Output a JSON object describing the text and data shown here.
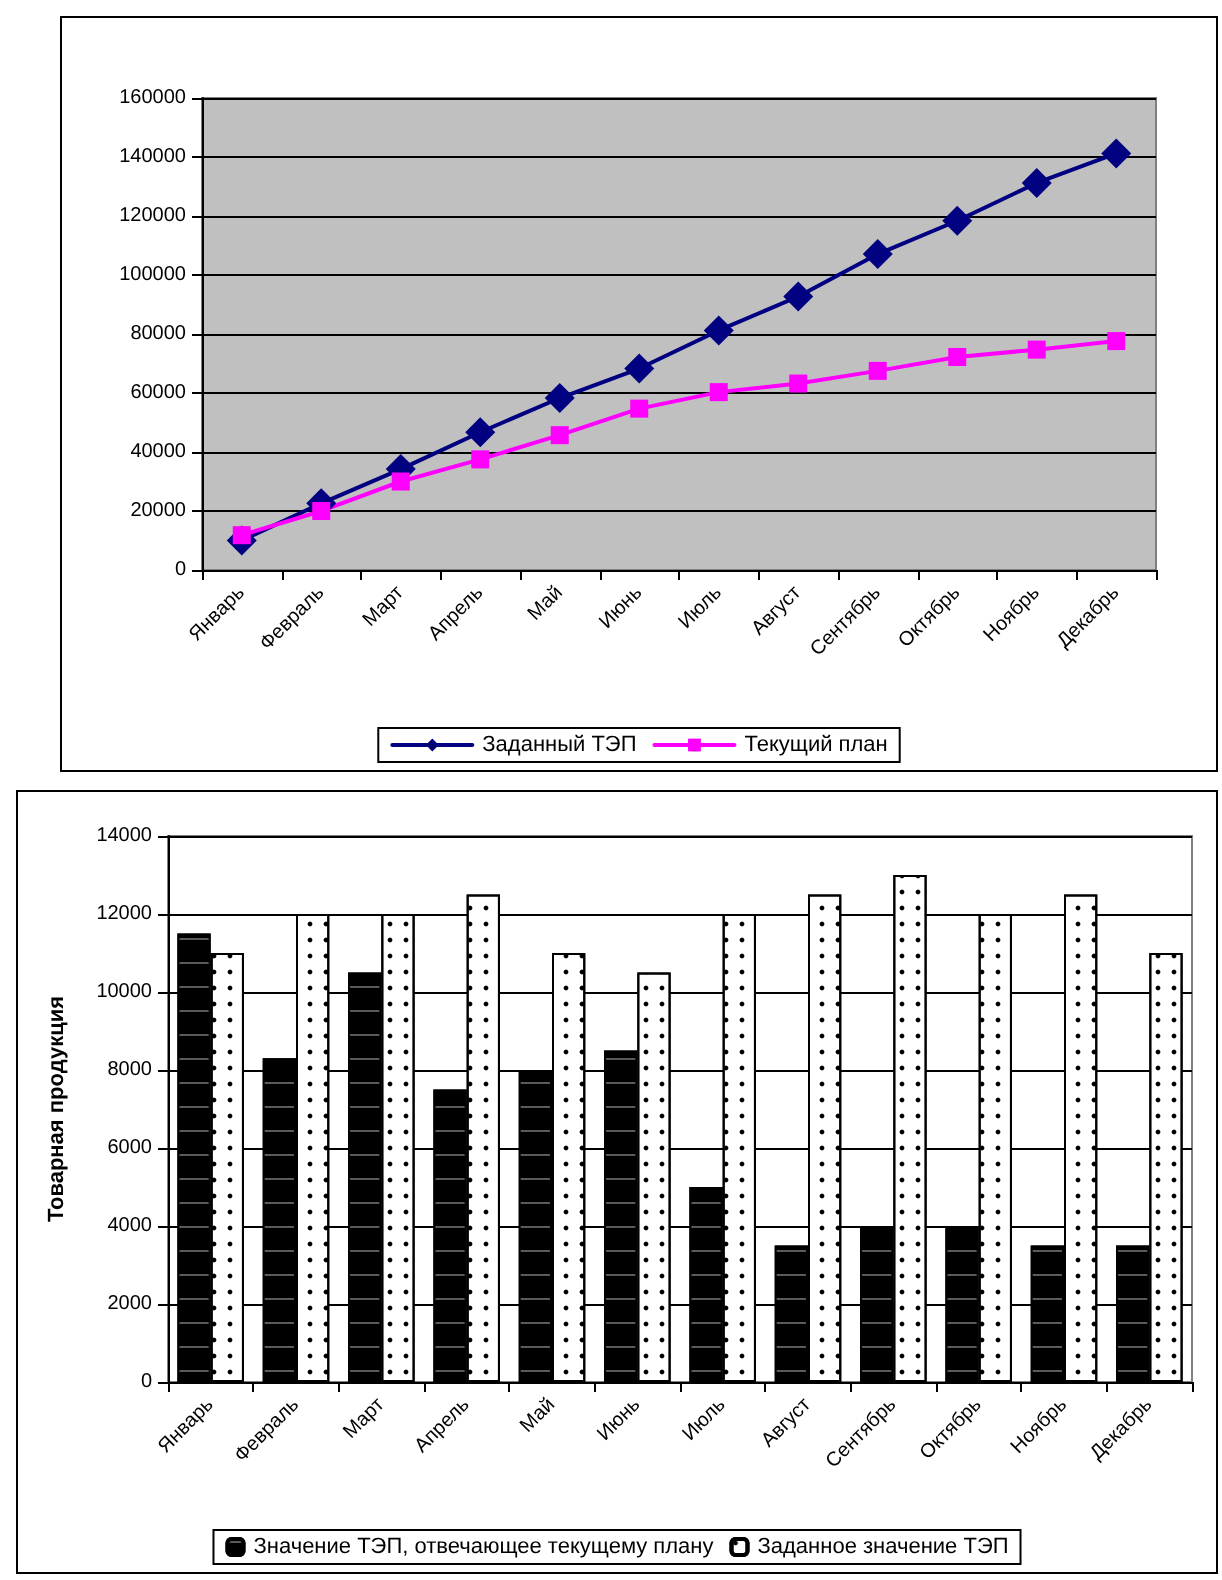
{
  "chart_data": [
    {
      "type": "line",
      "categories": [
        "Январь",
        "Февраль",
        "Март",
        "Апрель",
        "Май",
        "Июнь",
        "Июль",
        "Август",
        "Сентябрь",
        "Октябрь",
        "Ноябрь",
        "Декабрь"
      ],
      "series": [
        {
          "name": "Заданный ТЭП",
          "color": "#000080",
          "marker": "diamond",
          "values": [
            10000,
            22600,
            34200,
            46700,
            58300,
            68300,
            81200,
            92700,
            107100,
            118400,
            131200,
            141200
          ]
        },
        {
          "name": "Текущий план",
          "color": "#ff00ff",
          "marker": "square",
          "values": [
            11800,
            20000,
            30000,
            37500,
            45700,
            54700,
            60300,
            63200,
            67500,
            72200,
            74700,
            77600
          ]
        }
      ],
      "ylim": [
        0,
        160000
      ],
      "yticks": [
        0,
        20000,
        40000,
        60000,
        80000,
        100000,
        120000,
        140000,
        160000
      ],
      "grid": "y",
      "legend": "bottom",
      "line_style": "solid"
    },
    {
      "type": "bar",
      "ylabel": "Товарная продукция",
      "categories": [
        "Январь",
        "Февраль",
        "Март",
        "Апрель",
        "Май",
        "Июнь",
        "Июль",
        "Август",
        "Сентябрь",
        "Октябрь",
        "Ноябрь",
        "Декабрь"
      ],
      "series": [
        {
          "name": "Значение ТЭП, отвечающее текущему плану",
          "color": "#000000",
          "values": [
            11500,
            8300,
            10500,
            7500,
            8000,
            8500,
            5000,
            3500,
            4000,
            4000,
            3500,
            3500
          ]
        },
        {
          "name": "Заданное значение ТЭП",
          "color": "#ffffff",
          "values": [
            11000,
            12000,
            12000,
            12500,
            11000,
            10500,
            12000,
            12500,
            13000,
            12000,
            12500,
            11000
          ]
        }
      ],
      "ylim": [
        0,
        14000
      ],
      "yticks": [
        0,
        2000,
        4000,
        6000,
        8000,
        10000,
        12000,
        14000
      ],
      "grid": "y",
      "legend": "bottom"
    }
  ]
}
